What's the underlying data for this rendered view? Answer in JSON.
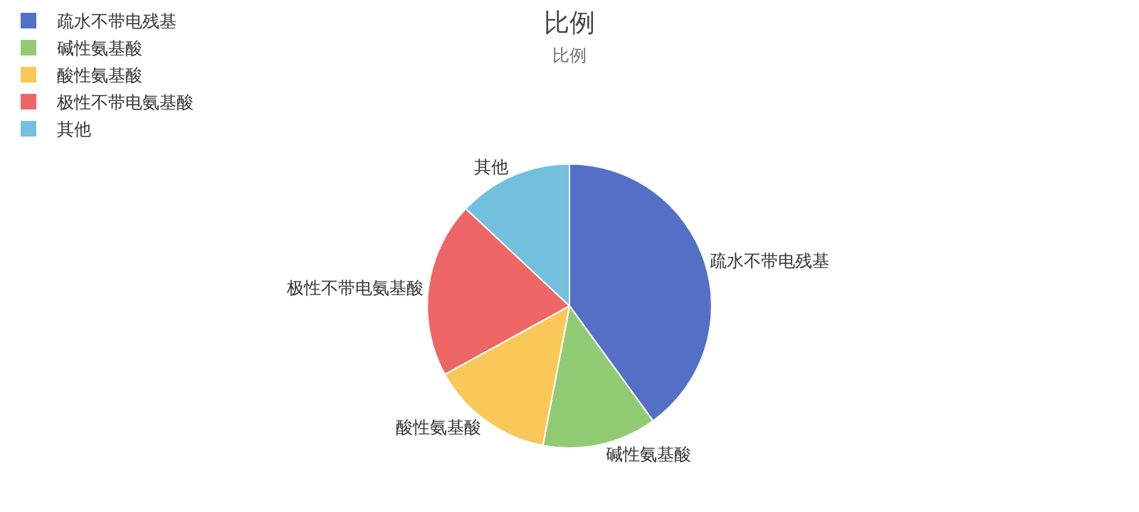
{
  "chart_data": {
    "type": "pie",
    "title": "比例",
    "subtitle": "比例",
    "categories": [
      "疏水不带电残基",
      "碱性氨基酸",
      "酸性氨基酸",
      "极性不带电氨基酸",
      "其他"
    ],
    "values": [
      40,
      13,
      14,
      20,
      13
    ],
    "colors": [
      "#5470c6",
      "#91cc75",
      "#fac858",
      "#ee6666",
      "#73c0de"
    ],
    "legend": "top left"
  }
}
